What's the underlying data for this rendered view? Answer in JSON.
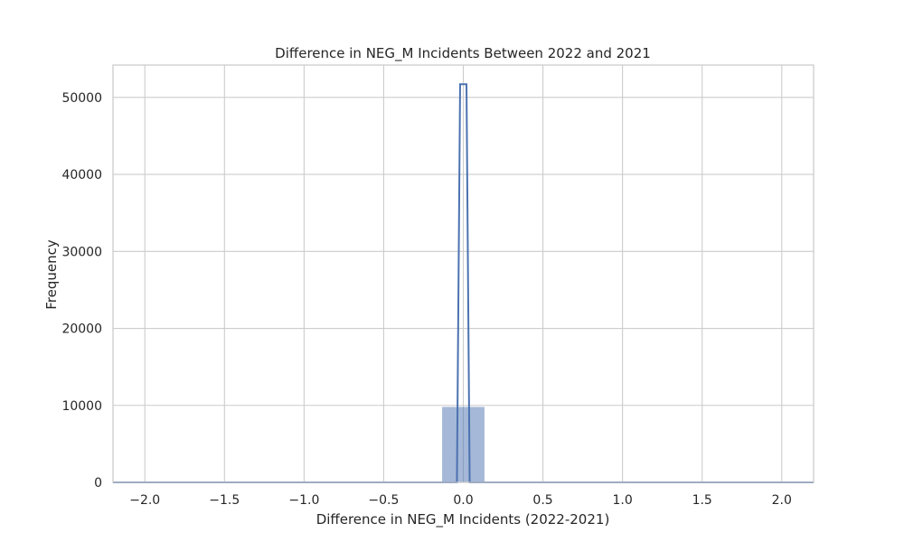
{
  "chart_data": {
    "type": "bar",
    "title": "Difference in NEG_M Incidents Between 2022 and 2021",
    "xlabel": "Difference in NEG_M Incidents (2022-2021)",
    "ylabel": "Frequency",
    "xlim": [
      -2.2,
      2.2
    ],
    "ylim": [
      0,
      54200
    ],
    "x_ticks": [
      -2.0,
      -1.5,
      -1.0,
      -0.5,
      0.0,
      0.5,
      1.0,
      1.5,
      2.0
    ],
    "x_tick_labels": [
      "−2.0",
      "−1.5",
      "−1.0",
      "−0.5",
      "0.0",
      "0.5",
      "1.0",
      "1.5",
      "2.0"
    ],
    "y_ticks": [
      0,
      10000,
      20000,
      30000,
      40000,
      50000
    ],
    "y_tick_labels": [
      "0",
      "10000",
      "20000",
      "30000",
      "40000",
      "50000"
    ],
    "grid": true,
    "bars": [
      {
        "x0": -2.0,
        "x1": -1.867,
        "value": 60
      },
      {
        "x0": -0.133,
        "x1": 0.133,
        "value": 9800
      },
      {
        "x0": 0.933,
        "x1": 1.067,
        "value": 120
      },
      {
        "x0": 1.867,
        "x1": 2.0,
        "value": 40
      }
    ],
    "kde_line": {
      "x": [
        -2.2,
        -0.04,
        -0.02,
        -0.01,
        0.01,
        0.02,
        0.04,
        2.2
      ],
      "y": [
        0,
        0,
        51700,
        51700,
        51700,
        51700,
        0,
        0
      ]
    },
    "colors": {
      "bar_fill": "#4c72b0",
      "bar_opacity": "0.5",
      "line": "#4c72b0",
      "grid": "#cccccc",
      "spine": "#cccccc",
      "text": "#262626"
    }
  }
}
